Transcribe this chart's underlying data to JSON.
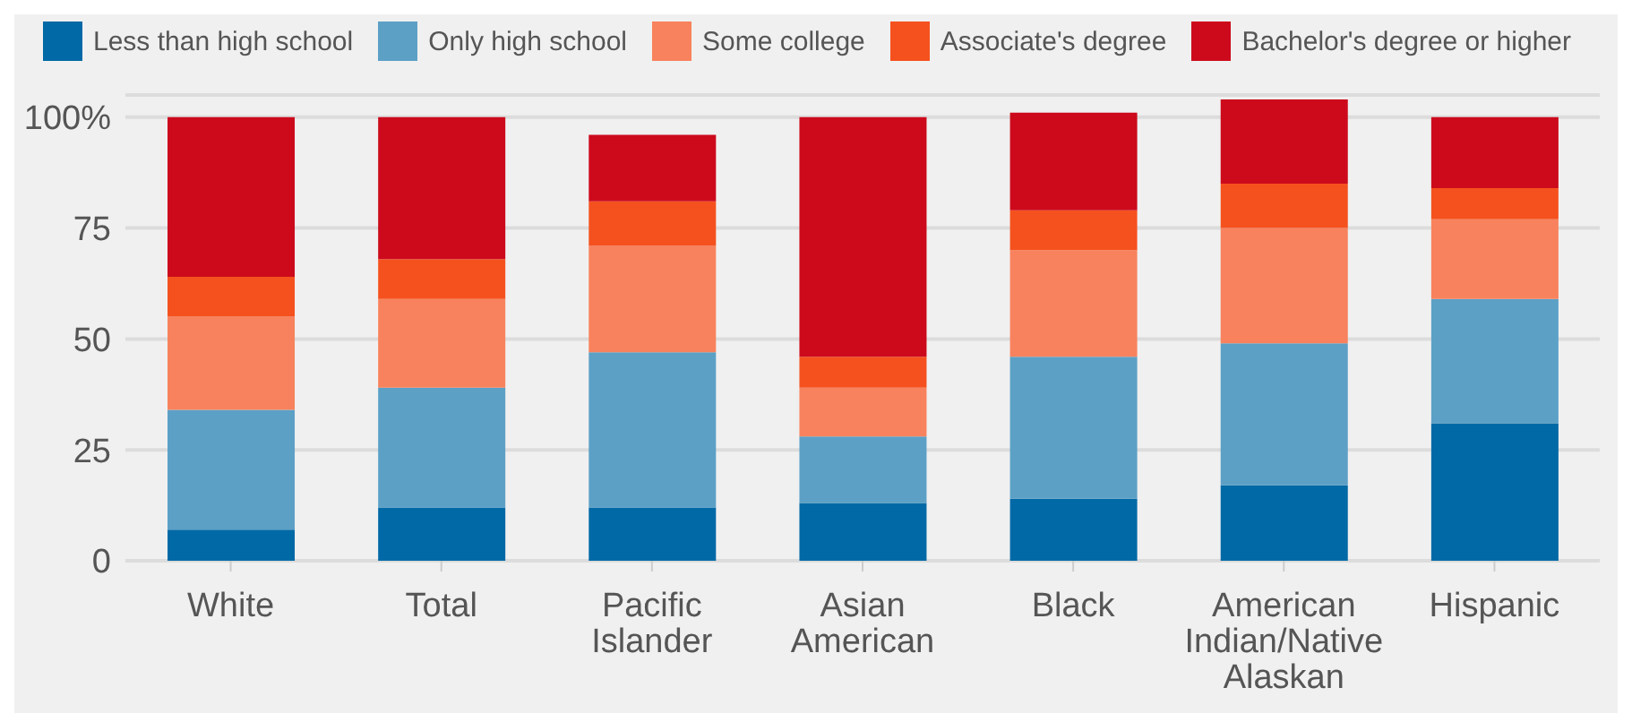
{
  "chart_data": {
    "type": "bar",
    "stacked": true,
    "categories": [
      "White",
      "Total",
      "Pacific Islander",
      "Asian American",
      "Black",
      "American Indian/Native Alaskan",
      "Hispanic"
    ],
    "series": [
      {
        "name": "Less than high school",
        "color": "#0069a6",
        "values": [
          7,
          12,
          12,
          13,
          14,
          17,
          31
        ]
      },
      {
        "name": "Only high school",
        "color": "#5ca0c6",
        "values": [
          27,
          27,
          35,
          15,
          32,
          32,
          28
        ]
      },
      {
        "name": "Some college",
        "color": "#f8825d",
        "values": [
          21,
          20,
          24,
          11,
          24,
          26,
          18
        ]
      },
      {
        "name": "Associate's degree",
        "color": "#f5511e",
        "values": [
          9,
          9,
          10,
          7,
          9,
          10,
          7
        ]
      },
      {
        "name": "Bachelor's degree or higher",
        "color": "#cc0a1c",
        "values": [
          36,
          32,
          15,
          54,
          22,
          19,
          16
        ]
      }
    ],
    "ylim": [
      0,
      105
    ],
    "yticks": [
      0,
      25,
      50,
      75,
      {
        "value": 100,
        "label": "100%"
      }
    ],
    "grid": "y",
    "legend": "top"
  }
}
